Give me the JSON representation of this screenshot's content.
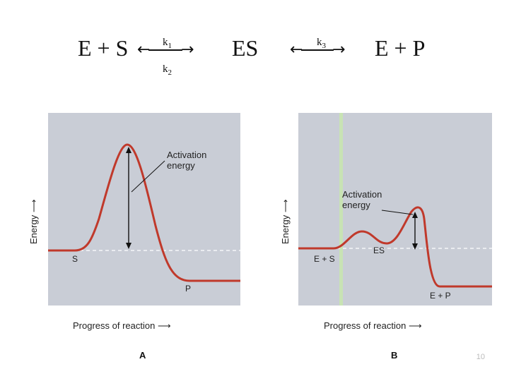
{
  "equation": {
    "left": "E + S",
    "k1": "k",
    "k1_sub": "1",
    "k2": "k",
    "k2_sub": "2",
    "middle": "ES",
    "k3": "k",
    "k3_sub": "3",
    "right": "E + P"
  },
  "panel_a": {
    "axis_y": "Energy",
    "axis_x": "Progress of reaction",
    "annotation": "Activation\nenergy",
    "start_label": "S",
    "end_label": "P",
    "figure_letter": "A"
  },
  "panel_b": {
    "axis_y": "Energy",
    "axis_x": "Progress of reaction",
    "annotation": "Activation\nenergy",
    "start_label": "E + S",
    "mid_label": "ES",
    "end_label": "E + P",
    "figure_letter": "B"
  },
  "colors": {
    "curve": "#c0392b",
    "panel_bg": "#c9cdd6",
    "dashed": "#ffffff",
    "highlight": "#c8e6b0"
  },
  "page_number": "10"
}
